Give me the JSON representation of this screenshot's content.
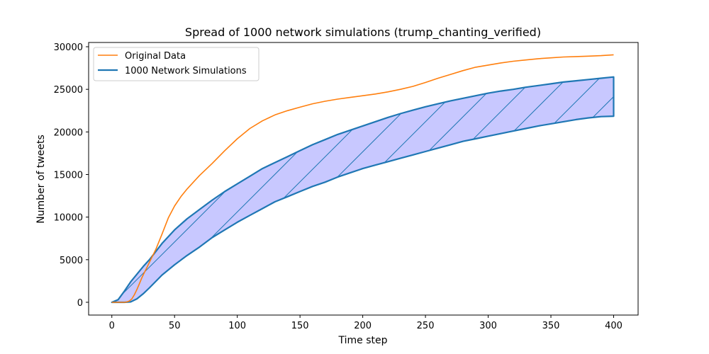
{
  "chart_data": {
    "type": "line",
    "title": "Spread of 1000 network simulations (trump_chanting_verified)",
    "xlabel": "Time step",
    "ylabel": "Number of tweets",
    "xlim": [
      -18.5,
      419.5
    ],
    "ylim": [
      -1500,
      30500
    ],
    "xticks": [
      0,
      50,
      100,
      150,
      200,
      250,
      300,
      350,
      400
    ],
    "yticks": [
      0,
      5000,
      10000,
      15000,
      20000,
      25000,
      30000
    ],
    "legend_position": "upper-left",
    "colors": {
      "original": "#ff7f0e",
      "simulation": "#1f77b4",
      "band_fill": "#c8c8ff"
    },
    "series": [
      {
        "name": "Original Data",
        "x": [
          0,
          10,
          12,
          14,
          16,
          18,
          20,
          22,
          24,
          26,
          28,
          30,
          35,
          40,
          45,
          50,
          55,
          60,
          65,
          70,
          75,
          80,
          90,
          100,
          110,
          120,
          130,
          140,
          150,
          160,
          170,
          180,
          190,
          200,
          210,
          220,
          230,
          240,
          250,
          260,
          270,
          280,
          290,
          300,
          310,
          320,
          330,
          340,
          350,
          360,
          370,
          380,
          390,
          400
        ],
        "values": [
          0,
          0,
          50,
          150,
          400,
          900,
          1500,
          2200,
          2900,
          3500,
          4100,
          4700,
          6200,
          8000,
          9900,
          11300,
          12400,
          13300,
          14100,
          14900,
          15600,
          16300,
          17800,
          19200,
          20400,
          21300,
          22000,
          22500,
          22900,
          23300,
          23600,
          23850,
          24050,
          24250,
          24450,
          24700,
          25000,
          25350,
          25800,
          26300,
          26750,
          27200,
          27600,
          27850,
          28100,
          28300,
          28450,
          28600,
          28700,
          28800,
          28850,
          28900,
          28950,
          29050
        ]
      },
      {
        "name": "1000 Network Simulations",
        "type": "band",
        "x": [
          0,
          5,
          10,
          15,
          20,
          25,
          30,
          40,
          50,
          60,
          70,
          80,
          90,
          100,
          110,
          120,
          130,
          140,
          150,
          160,
          170,
          180,
          190,
          200,
          210,
          220,
          230,
          240,
          250,
          260,
          270,
          280,
          290,
          300,
          310,
          320,
          330,
          340,
          350,
          360,
          370,
          380,
          390,
          400
        ],
        "upper": [
          0,
          300,
          1300,
          2400,
          3300,
          4200,
          5000,
          6900,
          8500,
          9800,
          10900,
          12000,
          13000,
          13900,
          14800,
          15700,
          16400,
          17100,
          17800,
          18500,
          19100,
          19700,
          20200,
          20700,
          21200,
          21700,
          22150,
          22550,
          22950,
          23300,
          23650,
          23950,
          24250,
          24550,
          24800,
          25000,
          25250,
          25450,
          25650,
          25850,
          26000,
          26150,
          26300,
          26450
        ],
        "lower": [
          0,
          0,
          0,
          50,
          400,
          1000,
          1700,
          3200,
          4400,
          5500,
          6500,
          7600,
          8500,
          9400,
          10200,
          11000,
          11800,
          12400,
          13000,
          13600,
          14100,
          14700,
          15200,
          15700,
          16100,
          16500,
          16900,
          17300,
          17700,
          18100,
          18500,
          18900,
          19200,
          19500,
          19800,
          20100,
          20400,
          20700,
          20950,
          21200,
          21450,
          21650,
          21800,
          21850
        ]
      }
    ]
  }
}
